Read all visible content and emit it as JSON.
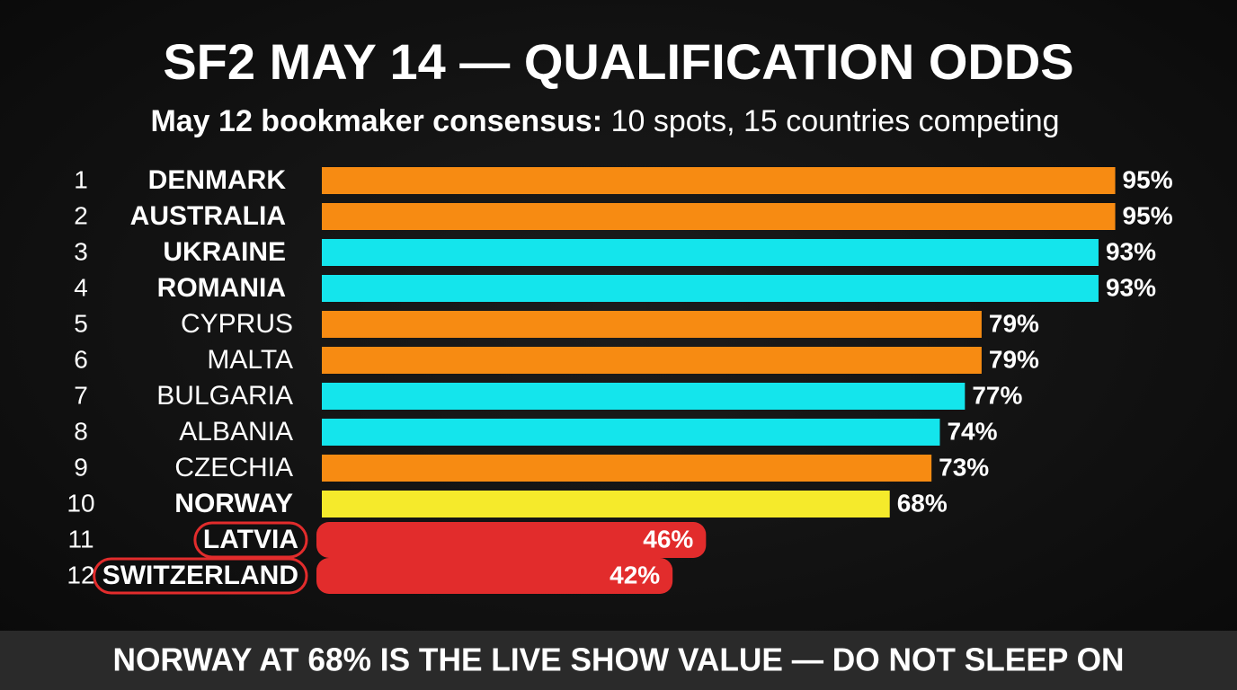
{
  "chart_data": {
    "type": "bar",
    "title": "SF2 MAY 14 — QUALIFICATION ODDS",
    "subtitle": [
      "May 12 bookmaker consensus:",
      "10 spots, 15 countries competing"
    ],
    "ranks": [
      1,
      2,
      3,
      4,
      5,
      6,
      7,
      8,
      9,
      10,
      11,
      12
    ],
    "categories": [
      "DENMARK",
      "AUSTRALIA",
      "UKRAINE",
      "ROMANIA",
      "CYPRUS",
      "MALTA",
      "BULGARIA",
      "ALBANIA",
      "CZECHIA",
      "NORWAY",
      "LATVIA",
      "SWITZERLAND"
    ],
    "values": [
      95,
      95,
      93,
      93,
      79,
      79,
      77,
      74,
      73,
      68,
      46,
      42
    ],
    "value_labels": [
      "95%",
      "95%",
      "93%",
      "93%",
      "79%",
      "79%",
      "77%",
      "74%",
      "73%",
      "68%",
      "46%",
      "42%"
    ],
    "colors": [
      "#f78b12",
      "#f78b12",
      "#14e5ec",
      "#14e5ec",
      "#f78b12",
      "#f78b12",
      "#14e5ec",
      "#14e5ec",
      "#f78b12",
      "#f5ea2b",
      "#e22c2c",
      "#e22c2c"
    ],
    "xlim": [
      0,
      100
    ],
    "footer": "NORWAY AT 68% IS THE LIVE SHOW VALUE — DO NOT SLEEP ON"
  }
}
